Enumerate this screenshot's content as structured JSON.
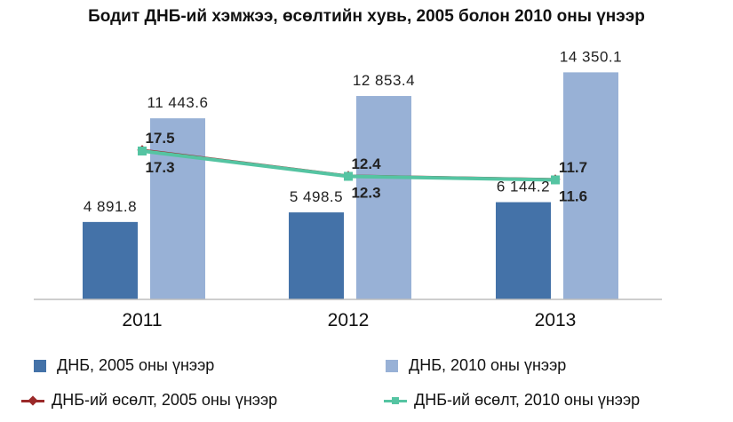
{
  "chart_data": {
    "type": "bar",
    "title": "Бодит ДНБ-ий хэмжээ, өсөлтийн хувь, 2005 болон 2010 оны үнээр",
    "categories": [
      "2011",
      "2012",
      "2013"
    ],
    "series": [
      {
        "name": "ДНБ, 2005 оны үнээр",
        "kind": "bar",
        "values": [
          4891.8,
          5498.5,
          6144.2
        ],
        "labels": [
          "4 891.8",
          "5 498.5",
          "6 144.2"
        ],
        "color": "#4472a8"
      },
      {
        "name": "ДНБ, 2010 оны үнээр",
        "kind": "bar",
        "values": [
          11443.6,
          12853.4,
          14350.1
        ],
        "labels": [
          "11 443.6",
          "12 853.4",
          "14 350.1"
        ],
        "color": "#98b1d6"
      },
      {
        "name": "ДНБ-ий өсөлт, 2005 оны үнээр",
        "kind": "line",
        "values": [
          17.5,
          12.4,
          11.7
        ],
        "labels": [
          "17.5",
          "12.4",
          "11.7"
        ],
        "color": "#9b2a2a",
        "marker": "diamond"
      },
      {
        "name": "ДНБ-ий өсөлт, 2010 оны үнээр",
        "kind": "line",
        "values": [
          17.3,
          12.3,
          11.6
        ],
        "labels": [
          "17.3",
          "12.3",
          "11.6"
        ],
        "color": "#55c4a2",
        "marker": "square"
      }
    ],
    "bar_ylim": [
      0,
      16000
    ],
    "growth_ylim": [
      -12,
      38
    ],
    "grid": false,
    "legend_position": "bottom"
  }
}
